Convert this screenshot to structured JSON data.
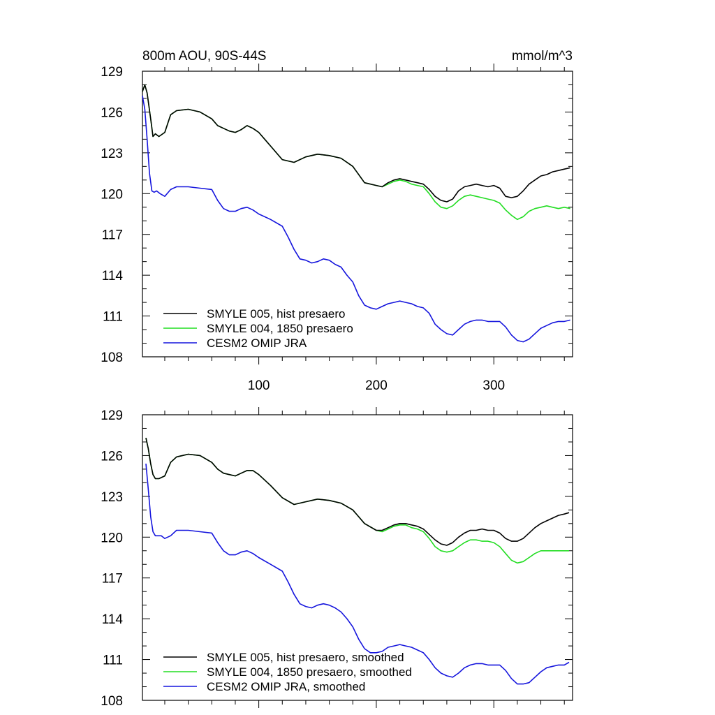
{
  "chart_data": [
    {
      "type": "line",
      "title": "800m AOU, 90S-44S",
      "units": "mmol/m^3",
      "xlabel": "",
      "ylabel": "",
      "xlim": [
        1,
        367
      ],
      "ylim": [
        108,
        129
      ],
      "yticks": [
        108,
        111,
        114,
        117,
        120,
        123,
        126,
        129
      ],
      "ytick_labels": [
        "108",
        "111",
        "114",
        "117",
        "120",
        "123",
        "126",
        "129"
      ],
      "xticks": [
        100,
        200,
        300
      ],
      "xtick_labels": [
        "100",
        "200",
        "300"
      ],
      "legend_position": "bottom-left",
      "series": [
        {
          "name": "SMYLE 005, hist presaero",
          "color": "#000000",
          "x": [
            1,
            3,
            5,
            8,
            10,
            12,
            15,
            20,
            25,
            30,
            40,
            50,
            60,
            65,
            70,
            75,
            80,
            85,
            90,
            95,
            100,
            110,
            120,
            130,
            140,
            150,
            160,
            170,
            180,
            190,
            200,
            205,
            210,
            215,
            220,
            225,
            230,
            235,
            240,
            245,
            250,
            255,
            260,
            265,
            270,
            275,
            280,
            285,
            290,
            295,
            300,
            305,
            310,
            315,
            320,
            325,
            330,
            335,
            340,
            345,
            350,
            355,
            360,
            365
          ],
          "values": [
            127.5,
            128.0,
            127.4,
            125.5,
            124.2,
            124.4,
            124.2,
            124.5,
            125.8,
            126.1,
            126.2,
            126.0,
            125.5,
            125.0,
            124.8,
            124.6,
            124.5,
            124.7,
            125.0,
            124.8,
            124.5,
            123.5,
            122.5,
            122.3,
            122.7,
            122.9,
            122.8,
            122.6,
            122.0,
            120.8,
            120.6,
            120.5,
            120.8,
            121.0,
            121.1,
            121.0,
            120.9,
            120.8,
            120.7,
            120.3,
            119.8,
            119.5,
            119.4,
            119.6,
            120.2,
            120.5,
            120.6,
            120.7,
            120.6,
            120.5,
            120.6,
            120.4,
            119.8,
            119.7,
            119.8,
            120.2,
            120.7,
            121.0,
            121.3,
            121.4,
            121.6,
            121.7,
            121.8,
            121.9
          ]
        },
        {
          "name": "SMYLE 004, 1850 presaero",
          "color": "#22dd22",
          "x": [
            1,
            3,
            5,
            8,
            10,
            12,
            15,
            20,
            25,
            30,
            40,
            50,
            60,
            65,
            70,
            75,
            80,
            85,
            90,
            95,
            100,
            110,
            120,
            130,
            140,
            150,
            160,
            170,
            180,
            190,
            200,
            205,
            210,
            215,
            220,
            225,
            230,
            235,
            240,
            245,
            250,
            255,
            260,
            265,
            270,
            275,
            280,
            285,
            290,
            295,
            300,
            305,
            310,
            315,
            320,
            325,
            330,
            335,
            340,
            345,
            350,
            355,
            360,
            365
          ],
          "values": [
            127.5,
            128.0,
            127.4,
            125.5,
            124.2,
            124.4,
            124.2,
            124.5,
            125.8,
            126.1,
            126.2,
            126.0,
            125.5,
            125.0,
            124.8,
            124.6,
            124.5,
            124.7,
            125.0,
            124.8,
            124.5,
            123.5,
            122.5,
            122.3,
            122.7,
            122.9,
            122.8,
            122.6,
            122.0,
            120.8,
            120.6,
            120.5,
            120.7,
            120.9,
            121.0,
            120.9,
            120.7,
            120.6,
            120.5,
            120.0,
            119.4,
            119.0,
            118.9,
            119.1,
            119.5,
            119.8,
            119.9,
            119.8,
            119.7,
            119.6,
            119.5,
            119.3,
            118.8,
            118.4,
            118.1,
            118.3,
            118.7,
            118.9,
            119.0,
            119.1,
            119.0,
            118.9,
            119.0,
            118.9
          ]
        },
        {
          "name": "CESM2 OMIP JRA",
          "color": "#1515dd",
          "x": [
            1,
            3,
            5,
            7,
            9,
            11,
            13,
            16,
            20,
            25,
            30,
            40,
            50,
            60,
            65,
            70,
            75,
            80,
            85,
            90,
            95,
            100,
            110,
            120,
            125,
            130,
            135,
            140,
            145,
            150,
            155,
            160,
            165,
            170,
            175,
            180,
            185,
            190,
            195,
            200,
            205,
            210,
            215,
            220,
            225,
            230,
            235,
            240,
            245,
            250,
            255,
            260,
            265,
            270,
            275,
            280,
            285,
            290,
            295,
            300,
            305,
            310,
            315,
            320,
            325,
            330,
            335,
            340,
            345,
            350,
            355,
            360,
            365
          ],
          "values": [
            127.2,
            126.2,
            124.0,
            121.5,
            120.2,
            120.1,
            120.2,
            120.0,
            119.8,
            120.3,
            120.5,
            120.5,
            120.4,
            120.3,
            119.5,
            118.9,
            118.7,
            118.7,
            118.9,
            119.0,
            118.8,
            118.5,
            118.1,
            117.6,
            116.8,
            115.9,
            115.2,
            115.1,
            114.9,
            115.0,
            115.2,
            115.1,
            114.8,
            114.6,
            114.0,
            113.5,
            112.5,
            111.8,
            111.6,
            111.5,
            111.7,
            111.9,
            112.0,
            112.1,
            112.0,
            111.9,
            111.7,
            111.6,
            111.2,
            110.4,
            110.0,
            109.7,
            109.6,
            110.0,
            110.4,
            110.6,
            110.7,
            110.7,
            110.6,
            110.6,
            110.6,
            110.2,
            109.6,
            109.2,
            109.1,
            109.3,
            109.7,
            110.1,
            110.3,
            110.5,
            110.6,
            110.6,
            110.7
          ]
        }
      ]
    },
    {
      "type": "line",
      "title": "",
      "xlim": [
        1,
        367
      ],
      "ylim": [
        108,
        129
      ],
      "yticks": [
        108,
        111,
        114,
        117,
        120,
        123,
        126,
        129
      ],
      "ytick_labels": [
        "108",
        "111",
        "114",
        "117",
        "120",
        "123",
        "126",
        "129"
      ],
      "xticks": [
        100,
        200,
        300
      ],
      "legend_position": "bottom-left",
      "series": [
        {
          "name": "SMYLE 005, hist presaero, smoothed",
          "color": "#000000",
          "x": [
            4,
            6,
            8,
            10,
            12,
            15,
            20,
            25,
            30,
            40,
            50,
            60,
            65,
            70,
            75,
            80,
            85,
            90,
            95,
            100,
            110,
            120,
            130,
            140,
            150,
            160,
            170,
            180,
            190,
            200,
            205,
            210,
            215,
            220,
            225,
            230,
            235,
            240,
            245,
            250,
            255,
            260,
            265,
            270,
            275,
            280,
            285,
            290,
            295,
            300,
            305,
            310,
            315,
            320,
            325,
            330,
            335,
            340,
            345,
            350,
            355,
            360,
            364
          ],
          "values": [
            127.3,
            126.5,
            125.4,
            124.6,
            124.3,
            124.3,
            124.5,
            125.5,
            125.9,
            126.1,
            126.0,
            125.5,
            125.0,
            124.7,
            124.6,
            124.5,
            124.7,
            124.9,
            124.9,
            124.6,
            123.8,
            122.9,
            122.4,
            122.6,
            122.8,
            122.7,
            122.5,
            122.0,
            121.0,
            120.5,
            120.5,
            120.7,
            120.9,
            121.0,
            121.0,
            120.9,
            120.8,
            120.6,
            120.2,
            119.8,
            119.5,
            119.4,
            119.6,
            120.0,
            120.3,
            120.5,
            120.5,
            120.6,
            120.5,
            120.5,
            120.3,
            119.9,
            119.7,
            119.7,
            119.9,
            120.3,
            120.7,
            121.0,
            121.2,
            121.4,
            121.6,
            121.7,
            121.8
          ]
        },
        {
          "name": "SMYLE 004, 1850 presaero, smoothed",
          "color": "#22dd22",
          "x": [
            4,
            6,
            8,
            10,
            12,
            15,
            20,
            25,
            30,
            40,
            50,
            60,
            65,
            70,
            75,
            80,
            85,
            90,
            95,
            100,
            110,
            120,
            130,
            140,
            150,
            160,
            170,
            180,
            190,
            200,
            205,
            210,
            215,
            220,
            225,
            230,
            235,
            240,
            245,
            250,
            255,
            260,
            265,
            270,
            275,
            280,
            285,
            290,
            295,
            300,
            305,
            310,
            315,
            320,
            325,
            330,
            335,
            340,
            345,
            350,
            355,
            360,
            364
          ],
          "values": [
            127.3,
            126.5,
            125.4,
            124.6,
            124.3,
            124.3,
            124.5,
            125.5,
            125.9,
            126.1,
            126.0,
            125.5,
            125.0,
            124.7,
            124.6,
            124.5,
            124.7,
            124.9,
            124.9,
            124.6,
            123.8,
            122.9,
            122.4,
            122.6,
            122.8,
            122.7,
            122.5,
            122.0,
            121.0,
            120.5,
            120.4,
            120.6,
            120.8,
            120.9,
            120.9,
            120.7,
            120.6,
            120.4,
            119.9,
            119.3,
            119.0,
            118.9,
            119.0,
            119.3,
            119.6,
            119.8,
            119.8,
            119.7,
            119.7,
            119.6,
            119.3,
            118.8,
            118.3,
            118.1,
            118.2,
            118.5,
            118.8,
            119.0,
            119.0,
            119.0,
            119.0,
            119.0,
            119.0
          ]
        },
        {
          "name": "CESM2 OMIP JRA, smoothed",
          "color": "#1515dd",
          "x": [
            4,
            6,
            8,
            10,
            12,
            14,
            17,
            20,
            25,
            30,
            40,
            50,
            60,
            65,
            70,
            75,
            80,
            85,
            90,
            95,
            100,
            110,
            120,
            125,
            130,
            135,
            140,
            145,
            150,
            155,
            160,
            165,
            170,
            175,
            180,
            185,
            190,
            195,
            200,
            205,
            210,
            215,
            220,
            225,
            230,
            235,
            240,
            245,
            250,
            255,
            260,
            265,
            270,
            275,
            280,
            285,
            290,
            295,
            300,
            305,
            310,
            315,
            320,
            325,
            330,
            335,
            340,
            345,
            350,
            355,
            360,
            364
          ],
          "values": [
            125.4,
            123.5,
            121.5,
            120.4,
            120.1,
            120.1,
            120.1,
            119.9,
            120.1,
            120.5,
            120.5,
            120.4,
            120.3,
            119.6,
            119.0,
            118.7,
            118.7,
            118.9,
            119.0,
            118.8,
            118.5,
            118.0,
            117.5,
            116.7,
            115.8,
            115.1,
            114.9,
            114.8,
            115.0,
            115.1,
            115.0,
            114.8,
            114.5,
            114.0,
            113.4,
            112.5,
            111.8,
            111.5,
            111.5,
            111.6,
            111.9,
            112.0,
            112.1,
            112.0,
            111.9,
            111.7,
            111.5,
            111.0,
            110.4,
            110.0,
            109.8,
            109.7,
            110.0,
            110.4,
            110.6,
            110.7,
            110.7,
            110.6,
            110.6,
            110.6,
            110.2,
            109.6,
            109.2,
            109.2,
            109.3,
            109.7,
            110.1,
            110.4,
            110.5,
            110.6,
            110.6,
            110.8
          ]
        }
      ]
    }
  ]
}
